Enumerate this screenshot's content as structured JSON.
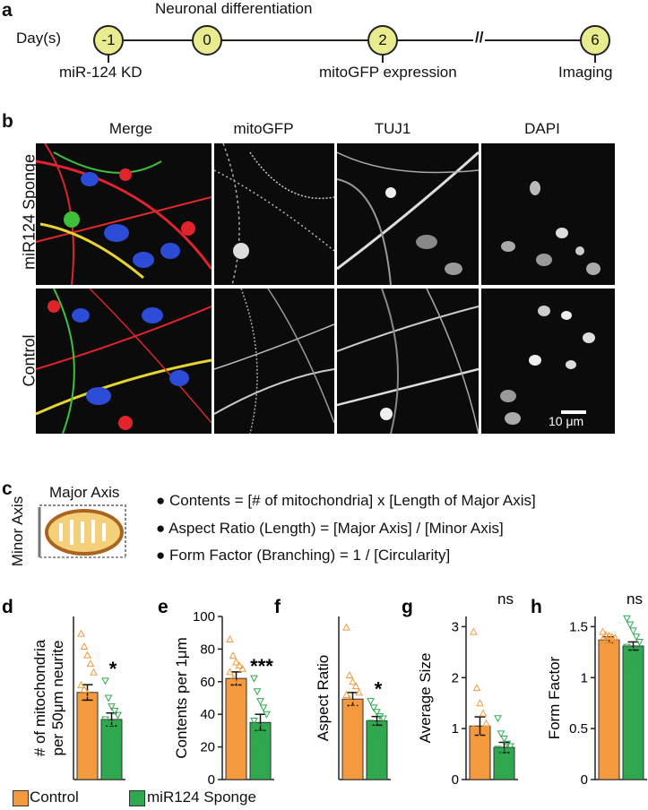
{
  "panel_a": {
    "letter": "a",
    "day_label": "Day(s)",
    "title": "Neuronal differentiation",
    "timepoints": [
      {
        "value": "-1",
        "label": "miR-124 KD"
      },
      {
        "value": "0",
        "label": ""
      },
      {
        "value": "2",
        "label": "mitoGFP expression"
      },
      {
        "value": "6",
        "label": "Imaging"
      }
    ],
    "break_mark": "//"
  },
  "panel_b": {
    "letter": "b",
    "columns": [
      "Merge",
      "mitoGFP",
      "TUJ1",
      "DAPI"
    ],
    "rows": [
      "miR124 Sponge",
      "Control"
    ],
    "scale_bar": "10 μm"
  },
  "panel_c": {
    "letter": "c",
    "major_axis": "Major Axis",
    "minor_axis": "Minor Axis",
    "bullets": [
      "Contents = [# of mitochondria] x [Length of Major Axis]",
      "Aspect Ratio (Length) = [Major Axis] / [Minor Axis]",
      "Form Factor (Branching)  = 1 / [Circularity]"
    ]
  },
  "legend": {
    "control": "Control",
    "sponge": "miR124 Sponge",
    "control_color": "#f39a3e",
    "sponge_color": "#2fa84f"
  },
  "chart_data": [
    {
      "letter": "d",
      "type": "bar",
      "ylabel_lines": [
        "# of mitochondria",
        "per 50μm neurite"
      ],
      "categories": [
        "Control",
        "miR124 Sponge"
      ],
      "values": [
        20.3,
        14.0
      ],
      "errors": [
        1.8,
        1.5
      ],
      "ylim": [
        0,
        38
      ],
      "ticks": [],
      "significance": "*",
      "points": [
        [
          34,
          31,
          29,
          27,
          25,
          22,
          21,
          20,
          17,
          15,
          13,
          12
        ],
        [
          23,
          19,
          17,
          16,
          15,
          14,
          13,
          12,
          11,
          10,
          8
        ]
      ]
    },
    {
      "letter": "e",
      "type": "bar",
      "ylabel_lines": [
        "Contents per 1μm"
      ],
      "categories": [
        "Control",
        "miR124 Sponge"
      ],
      "values": [
        62,
        35
      ],
      "errors": [
        4,
        5
      ],
      "ylim": [
        0,
        100
      ],
      "ticks": [
        0,
        20,
        40,
        60,
        80,
        100
      ],
      "significance": "***",
      "points": [
        [
          86,
          76,
          72,
          70,
          68,
          66,
          62,
          58,
          55,
          50,
          46,
          42
        ],
        [
          62,
          54,
          48,
          44,
          40,
          36,
          32,
          28,
          24,
          20,
          16
        ]
      ]
    },
    {
      "letter": "f",
      "type": "bar",
      "ylabel_lines": [
        "Aspect Ratio"
      ],
      "categories": [
        "Control",
        "miR124 Sponge"
      ],
      "values": [
        3.7,
        2.7
      ],
      "errors": [
        0.3,
        0.2
      ],
      "ylim": [
        0,
        7.5
      ],
      "ticks": [],
      "significance": "*",
      "points": [
        [
          7.0,
          4.8,
          4.5,
          4.3,
          4.0,
          3.9,
          3.7,
          3.5,
          3.3,
          3.0,
          2.8,
          2.4
        ],
        [
          3.6,
          3.3,
          3.1,
          2.9,
          2.8,
          2.6,
          2.5,
          2.3,
          2.1,
          1.9,
          1.6
        ]
      ]
    },
    {
      "letter": "g",
      "type": "bar",
      "ylabel_lines": [
        "Average Size"
      ],
      "categories": [
        "Control",
        "miR124 Sponge"
      ],
      "values": [
        1.05,
        0.63
      ],
      "errors": [
        0.18,
        0.1
      ],
      "ylim": [
        0,
        3.2
      ],
      "ticks": [
        0,
        1,
        2,
        3
      ],
      "significance": "ns",
      "points": [
        [
          2.9,
          1.8,
          1.5,
          1.3,
          1.1,
          1.0,
          0.9,
          0.8,
          0.6,
          0.5,
          0.4,
          0.3
        ],
        [
          1.2,
          0.9,
          0.8,
          0.7,
          0.65,
          0.6,
          0.55,
          0.5,
          0.4,
          0.35,
          0.3
        ]
      ]
    },
    {
      "letter": "h",
      "type": "bar",
      "ylabel_lines": [
        "Form Factor"
      ],
      "categories": [
        "Control",
        "miR124 Sponge"
      ],
      "values": [
        1.37,
        1.31
      ],
      "errors": [
        0.03,
        0.04
      ],
      "ylim": [
        0,
        1.6
      ],
      "ticks": [
        0,
        0.5,
        1.0,
        1.5
      ],
      "significance": "ns",
      "points": [
        [
          1.45,
          1.42,
          1.41,
          1.4,
          1.39,
          1.38,
          1.37,
          1.36,
          1.35,
          1.34,
          1.33,
          1.32
        ],
        [
          1.58,
          1.52,
          1.46,
          1.4,
          1.35,
          1.3,
          1.26,
          1.22,
          1.18,
          1.14,
          1.1
        ]
      ]
    }
  ]
}
